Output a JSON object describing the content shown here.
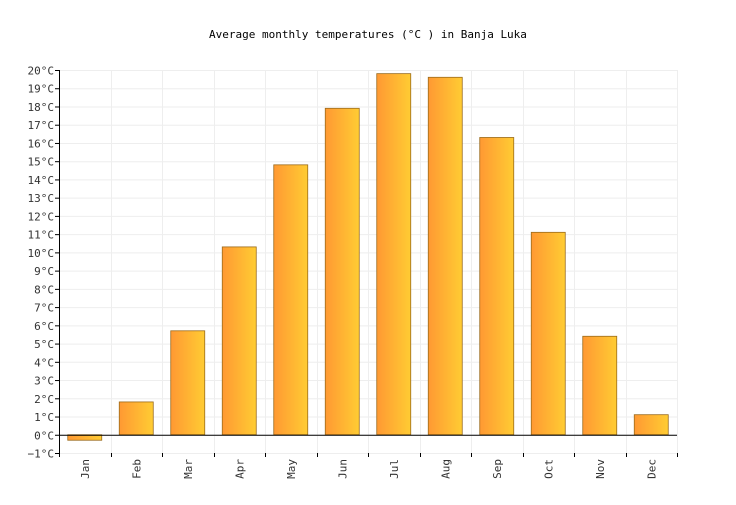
{
  "chart_data": {
    "type": "bar",
    "title": "Average monthly temperatures (°C ) in Banja Luka",
    "categories": [
      "Jan",
      "Feb",
      "Mar",
      "Apr",
      "May",
      "Jun",
      "Jul",
      "Aug",
      "Sep",
      "Oct",
      "Nov",
      "Dec"
    ],
    "values": [
      -0.3,
      1.8,
      5.7,
      10.3,
      14.8,
      17.9,
      19.8,
      19.6,
      16.3,
      11.1,
      5.4,
      1.1
    ],
    "ylim": [
      -1,
      20
    ],
    "yticks": [
      -1,
      0,
      1,
      2,
      3,
      4,
      5,
      6,
      7,
      8,
      9,
      10,
      11,
      12,
      13,
      14,
      15,
      16,
      17,
      18,
      19,
      20
    ],
    "ytick_labels": [
      "−1°C",
      "0°C",
      "1°C",
      "2°C",
      "3°C",
      "4°C",
      "5°C",
      "6°C",
      "7°C",
      "8°C",
      "9°C",
      "10°C",
      "11°C",
      "12°C",
      "13°C",
      "14°C",
      "15°C",
      "16°C",
      "17°C",
      "18°C",
      "19°C",
      "20°C"
    ],
    "grid": true,
    "bar_color_left": "#ff9933",
    "bar_color_right": "#ffcc33"
  }
}
